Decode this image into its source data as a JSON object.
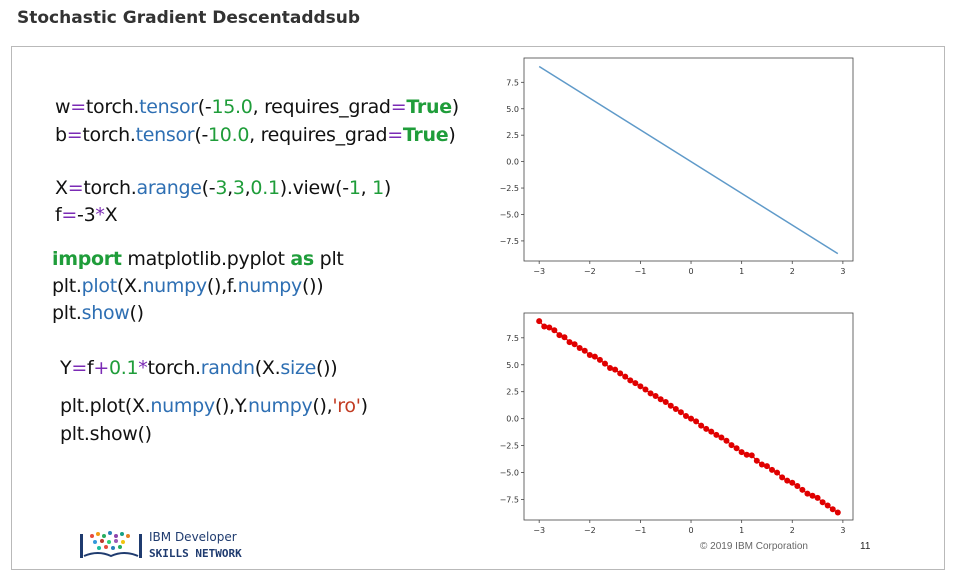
{
  "page": {
    "title": "Stochastic Gradient Descentaddsub"
  },
  "code": {
    "line1": {
      "a": "w",
      "eq": "=",
      "b": "torch.",
      "fn": "tensor",
      "c": "(",
      "d": "-",
      "num": "15.0",
      "e": ", requires_grad",
      "eq2": "=",
      "bool": "True",
      "f": ")"
    },
    "line2": {
      "a": "b",
      "eq": "=",
      "b": "torch.",
      "fn": "tensor",
      "c": "(",
      "d": "-",
      "num": "10.0",
      "e": ", requires_grad",
      "eq2": "=",
      "bool": "True",
      "f": ")"
    },
    "line3": {
      "a": "X",
      "eq": "=",
      "b": "torch.",
      "fn": "arange",
      "c": "(",
      "d": "-",
      "n1": "3",
      "sep1": ",",
      "n2": "3",
      "sep2": ",",
      "n3": "0.1",
      "e": ").view(",
      "d2": "-",
      "n4": "1",
      "sep3": ", ",
      "n5": "1",
      "f": ")"
    },
    "line4": {
      "a": "f",
      "eq": "=",
      "b": "-3",
      "op": "*",
      "c": "X"
    },
    "line5": {
      "kw1": "import",
      "a": " matplotlib.pyplot ",
      "kw2": "as",
      "b": " plt"
    },
    "line6": {
      "a": "plt.",
      "fn": "plot",
      "b": "(X.",
      "fn2": "numpy",
      "c": "(),f.",
      "fn3": "numpy",
      "d": "())"
    },
    "line7": {
      "a": "plt.",
      "fn": "show",
      "b": "()"
    },
    "line8": {
      "a": "Y",
      "eq": "=",
      "b": "f",
      "op": "+",
      "num": "0.1",
      "op2": "*",
      "c": "torch.",
      "fn": "randn",
      "d": "(X.",
      "fn2": "size",
      "e": "())"
    },
    "line9": {
      "a": "plt.plot(X.",
      "fn": "numpy",
      "b": "(),Y.",
      "fn2": "numpy",
      "c": "(),",
      "str": "'ro'",
      "d": ")"
    },
    "line10": {
      "a": "plt.show()"
    }
  },
  "chart_data": [
    {
      "type": "line",
      "x_ticks": [
        "-3",
        "-2",
        "-1",
        "0",
        "1",
        "2",
        "3"
      ],
      "y_ticks": [
        "7.5",
        "5.0",
        "2.5",
        "0.0",
        "-2.5",
        "-5.0",
        "-7.5"
      ],
      "xlim": [
        -3.3,
        3.2
      ],
      "ylim": [
        -9.4,
        9.8
      ],
      "series": [
        {
          "x": [
            -3.0,
            2.9
          ],
          "y": [
            9.0,
            -8.7
          ],
          "color": "#5f9ac9"
        }
      ]
    },
    {
      "type": "scatter",
      "x_ticks": [
        "-3",
        "-2",
        "-1",
        "0",
        "1",
        "2",
        "3"
      ],
      "y_ticks": [
        "7.5",
        "5.0",
        "2.5",
        "0.0",
        "-2.5",
        "-5.0",
        "-7.5"
      ],
      "xlim": [
        -3.3,
        3.2
      ],
      "ylim": [
        -9.4,
        9.8
      ],
      "series": [
        {
          "color": "#e00000",
          "x": [
            -3.0,
            -2.9,
            -2.8,
            -2.7,
            -2.6,
            -2.5,
            -2.4,
            -2.3,
            -2.2,
            -2.1,
            -2.0,
            -1.9,
            -1.8,
            -1.7,
            -1.6,
            -1.5,
            -1.4,
            -1.3,
            -1.2,
            -1.1,
            -1.0,
            -0.9,
            -0.8,
            -0.7,
            -0.6,
            -0.5,
            -0.4,
            -0.3,
            -0.2,
            -0.1,
            0.0,
            0.1,
            0.2,
            0.3,
            0.4,
            0.5,
            0.6,
            0.7,
            0.8,
            0.9,
            1.0,
            1.1,
            1.2,
            1.3,
            1.4,
            1.5,
            1.6,
            1.7,
            1.8,
            1.9,
            2.0,
            2.1,
            2.2,
            2.3,
            2.4,
            2.5,
            2.6,
            2.7,
            2.8,
            2.9
          ],
          "y": [
            9.05,
            8.55,
            8.45,
            8.2,
            7.75,
            7.55,
            7.1,
            6.9,
            6.55,
            6.3,
            5.9,
            5.75,
            5.45,
            5.1,
            4.7,
            4.55,
            4.2,
            3.9,
            3.55,
            3.3,
            3.0,
            2.7,
            2.35,
            2.1,
            1.8,
            1.55,
            1.2,
            0.9,
            0.6,
            0.25,
            0.0,
            -0.25,
            -0.65,
            -0.95,
            -1.2,
            -1.5,
            -1.75,
            -2.05,
            -2.45,
            -2.75,
            -3.1,
            -3.35,
            -3.4,
            -3.9,
            -4.25,
            -4.4,
            -4.75,
            -5.0,
            -5.45,
            -5.75,
            -5.95,
            -6.25,
            -6.6,
            -6.95,
            -7.15,
            -7.35,
            -7.75,
            -8.05,
            -8.4,
            -8.7
          ]
        }
      ]
    }
  ],
  "footer": {
    "logo_line1": "IBM Developer",
    "logo_line2": "SKILLS NETWORK",
    "copyright": "© 2019 IBM Corporation",
    "page_number": "11"
  }
}
